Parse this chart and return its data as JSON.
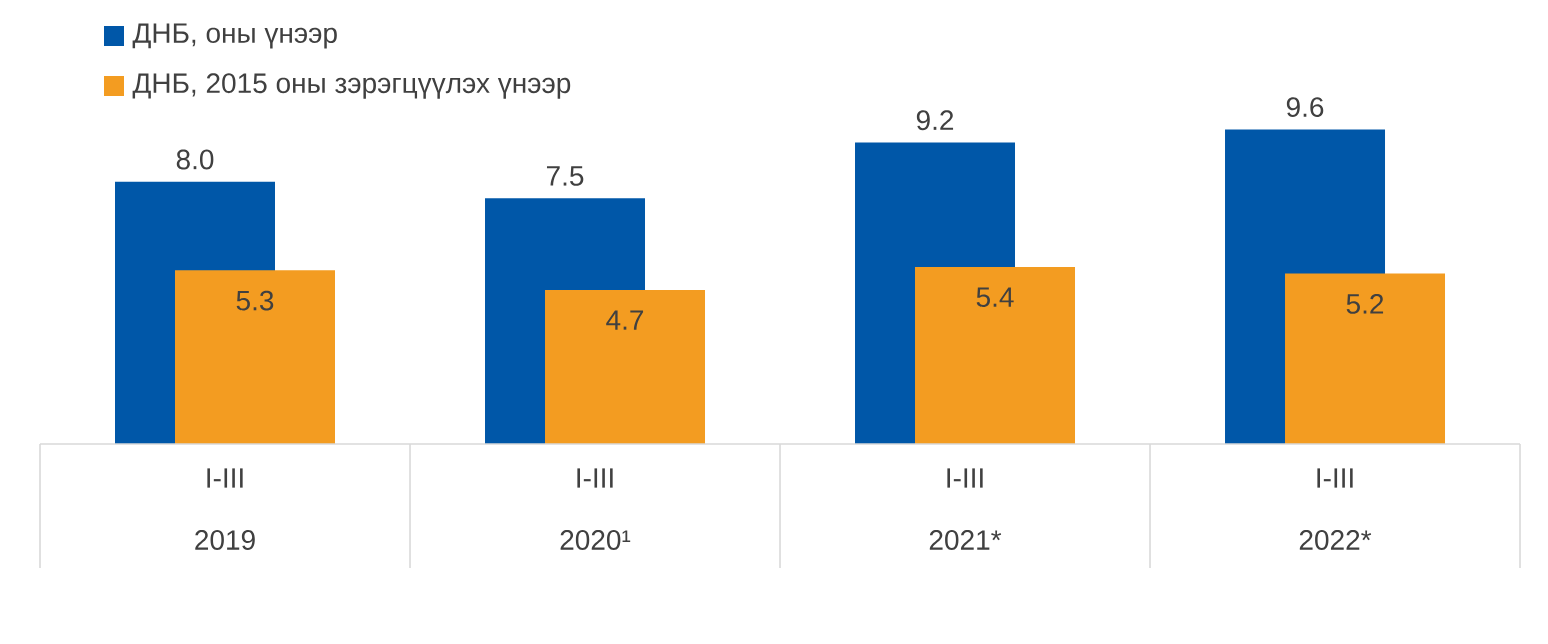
{
  "chart_data": {
    "type": "bar",
    "categories": [
      "2019",
      "2020¹",
      "2021*",
      "2022*"
    ],
    "series": [
      {
        "name": "ДНБ, оны үнээр",
        "color": "#0057a8",
        "values": [
          8.0,
          7.5,
          9.2,
          9.6
        ],
        "value_labels": [
          "8.0",
          "7.5",
          "9.2",
          "9.6"
        ]
      },
      {
        "name": "ДНБ, 2015 оны зэрэгцүүлэх үнээр",
        "color": "#f39c21",
        "values": [
          5.3,
          4.7,
          5.4,
          5.2
        ],
        "value_labels": [
          "5.3",
          "4.7",
          "5.4",
          "5.2"
        ]
      }
    ],
    "annotations": [
      "I-III",
      "I-III",
      "I-III",
      "I-III"
    ],
    "legend": "top left"
  }
}
